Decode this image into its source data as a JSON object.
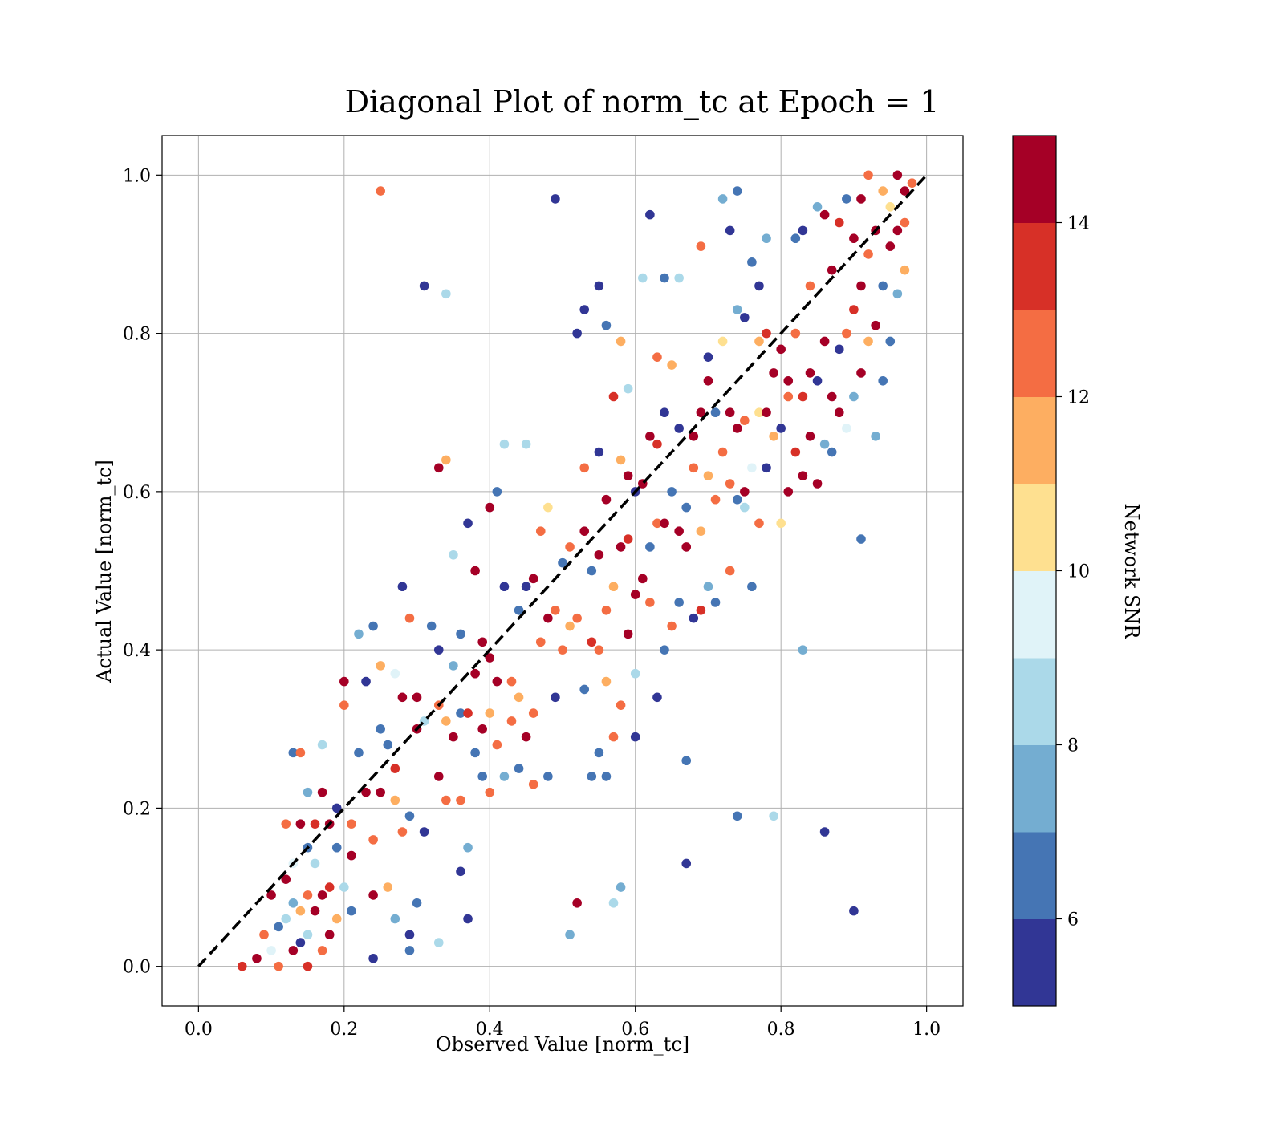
{
  "chart_data": {
    "type": "scatter",
    "title": "Diagonal Plot of norm_tc at Epoch = 1",
    "xlabel": "Observed Value [norm_tc]",
    "ylabel": "Actual Value [norm_tc]",
    "xlim": [
      -0.05,
      1.05
    ],
    "ylim": [
      -0.05,
      1.05
    ],
    "xticks": [
      "0.0",
      "0.2",
      "0.4",
      "0.6",
      "0.8",
      "1.0"
    ],
    "yticks": [
      "0.0",
      "0.2",
      "0.4",
      "0.6",
      "0.8",
      "1.0"
    ],
    "grid": true,
    "reference_line": {
      "style": "dashed",
      "color": "#000000",
      "from": [
        0,
        0
      ],
      "to": [
        1,
        1
      ]
    },
    "colorbar": {
      "label": "Network SNR",
      "range": [
        5,
        15
      ],
      "ticks": [
        "6",
        "8",
        "10",
        "12",
        "14"
      ],
      "colors": [
        "#313695",
        "#4575b4",
        "#74add1",
        "#abd9e9",
        "#e0f3f8",
        "#fee090",
        "#fdae61",
        "#f46d43",
        "#d73027",
        "#a50026"
      ],
      "bands": 10
    },
    "points": [
      [
        0.06,
        0.0,
        13
      ],
      [
        0.08,
        0.01,
        14
      ],
      [
        0.09,
        0.04,
        12
      ],
      [
        0.1,
        0.02,
        9
      ],
      [
        0.1,
        0.09,
        14
      ],
      [
        0.11,
        0.05,
        6
      ],
      [
        0.11,
        0.0,
        12
      ],
      [
        0.12,
        0.06,
        8
      ],
      [
        0.12,
        0.11,
        14
      ],
      [
        0.12,
        0.18,
        12
      ],
      [
        0.13,
        0.02,
        14
      ],
      [
        0.13,
        0.08,
        7
      ],
      [
        0.13,
        0.13,
        9
      ],
      [
        0.13,
        0.27,
        6
      ],
      [
        0.14,
        0.03,
        5
      ],
      [
        0.14,
        0.07,
        11
      ],
      [
        0.14,
        0.18,
        14
      ],
      [
        0.14,
        0.27,
        12
      ],
      [
        0.15,
        0.0,
        13
      ],
      [
        0.15,
        0.04,
        8
      ],
      [
        0.15,
        0.09,
        12
      ],
      [
        0.15,
        0.15,
        6
      ],
      [
        0.15,
        0.22,
        7
      ],
      [
        0.16,
        0.07,
        14
      ],
      [
        0.16,
        0.13,
        8
      ],
      [
        0.16,
        0.18,
        13
      ],
      [
        0.17,
        0.02,
        12
      ],
      [
        0.17,
        0.09,
        14
      ],
      [
        0.17,
        0.22,
        14
      ],
      [
        0.17,
        0.28,
        8
      ],
      [
        0.18,
        0.04,
        14
      ],
      [
        0.18,
        0.1,
        13
      ],
      [
        0.18,
        0.18,
        14
      ],
      [
        0.19,
        0.06,
        11
      ],
      [
        0.19,
        0.15,
        6
      ],
      [
        0.19,
        0.2,
        5
      ],
      [
        0.2,
        0.1,
        8
      ],
      [
        0.2,
        0.33,
        12
      ],
      [
        0.2,
        0.36,
        14
      ],
      [
        0.21,
        0.07,
        6
      ],
      [
        0.21,
        0.14,
        14
      ],
      [
        0.21,
        0.18,
        12
      ],
      [
        0.22,
        0.27,
        6
      ],
      [
        0.22,
        0.42,
        7
      ],
      [
        0.23,
        0.22,
        14
      ],
      [
        0.23,
        0.36,
        5
      ],
      [
        0.24,
        0.01,
        5
      ],
      [
        0.24,
        0.09,
        14
      ],
      [
        0.24,
        0.16,
        12
      ],
      [
        0.24,
        0.43,
        6
      ],
      [
        0.25,
        0.22,
        14
      ],
      [
        0.25,
        0.3,
        6
      ],
      [
        0.25,
        0.38,
        11
      ],
      [
        0.25,
        0.98,
        12
      ],
      [
        0.26,
        0.1,
        11
      ],
      [
        0.26,
        0.28,
        6
      ],
      [
        0.27,
        0.06,
        7
      ],
      [
        0.27,
        0.21,
        11
      ],
      [
        0.27,
        0.25,
        13
      ],
      [
        0.27,
        0.37,
        9
      ],
      [
        0.28,
        0.17,
        12
      ],
      [
        0.28,
        0.34,
        14
      ],
      [
        0.28,
        0.48,
        5
      ],
      [
        0.29,
        0.02,
        6
      ],
      [
        0.29,
        0.04,
        5
      ],
      [
        0.29,
        0.19,
        6
      ],
      [
        0.29,
        0.44,
        12
      ],
      [
        0.3,
        0.08,
        6
      ],
      [
        0.3,
        0.3,
        14
      ],
      [
        0.3,
        0.34,
        14
      ],
      [
        0.31,
        0.17,
        5
      ],
      [
        0.31,
        0.31,
        8
      ],
      [
        0.31,
        0.86,
        5
      ],
      [
        0.32,
        0.43,
        6
      ],
      [
        0.33,
        0.03,
        8
      ],
      [
        0.33,
        0.24,
        14
      ],
      [
        0.33,
        0.33,
        12
      ],
      [
        0.33,
        0.4,
        5
      ],
      [
        0.33,
        0.63,
        14
      ],
      [
        0.34,
        0.21,
        12
      ],
      [
        0.34,
        0.31,
        11
      ],
      [
        0.34,
        0.64,
        11
      ],
      [
        0.34,
        0.85,
        8
      ],
      [
        0.35,
        0.29,
        14
      ],
      [
        0.35,
        0.38,
        7
      ],
      [
        0.35,
        0.52,
        8
      ],
      [
        0.36,
        0.12,
        5
      ],
      [
        0.36,
        0.21,
        12
      ],
      [
        0.36,
        0.32,
        6
      ],
      [
        0.36,
        0.42,
        6
      ],
      [
        0.37,
        0.06,
        5
      ],
      [
        0.37,
        0.15,
        7
      ],
      [
        0.37,
        0.32,
        13
      ],
      [
        0.37,
        0.56,
        5
      ],
      [
        0.38,
        0.27,
        6
      ],
      [
        0.38,
        0.37,
        14
      ],
      [
        0.38,
        0.5,
        14
      ],
      [
        0.39,
        0.24,
        6
      ],
      [
        0.39,
        0.3,
        14
      ],
      [
        0.39,
        0.41,
        14
      ],
      [
        0.4,
        0.22,
        12
      ],
      [
        0.4,
        0.32,
        11
      ],
      [
        0.4,
        0.39,
        14
      ],
      [
        0.4,
        0.58,
        14
      ],
      [
        0.41,
        0.28,
        12
      ],
      [
        0.41,
        0.36,
        14
      ],
      [
        0.41,
        0.6,
        6
      ],
      [
        0.42,
        0.24,
        7
      ],
      [
        0.42,
        0.48,
        5
      ],
      [
        0.42,
        0.66,
        8
      ],
      [
        0.43,
        0.31,
        12
      ],
      [
        0.43,
        0.36,
        12
      ],
      [
        0.44,
        0.25,
        6
      ],
      [
        0.44,
        0.34,
        11
      ],
      [
        0.44,
        0.45,
        6
      ],
      [
        0.45,
        0.29,
        14
      ],
      [
        0.45,
        0.48,
        5
      ],
      [
        0.45,
        0.66,
        8
      ],
      [
        0.46,
        0.23,
        12
      ],
      [
        0.46,
        0.32,
        12
      ],
      [
        0.46,
        0.49,
        14
      ],
      [
        0.47,
        0.41,
        12
      ],
      [
        0.47,
        0.55,
        12
      ],
      [
        0.48,
        0.24,
        6
      ],
      [
        0.48,
        0.44,
        14
      ],
      [
        0.48,
        0.58,
        10
      ],
      [
        0.49,
        0.34,
        5
      ],
      [
        0.49,
        0.45,
        12
      ],
      [
        0.49,
        0.97,
        5
      ],
      [
        0.5,
        0.4,
        12
      ],
      [
        0.5,
        0.51,
        6
      ],
      [
        0.51,
        0.04,
        7
      ],
      [
        0.51,
        0.43,
        11
      ],
      [
        0.51,
        0.53,
        12
      ],
      [
        0.52,
        0.08,
        14
      ],
      [
        0.52,
        0.44,
        12
      ],
      [
        0.52,
        0.8,
        5
      ],
      [
        0.53,
        0.35,
        6
      ],
      [
        0.53,
        0.55,
        14
      ],
      [
        0.53,
        0.63,
        12
      ],
      [
        0.53,
        0.83,
        5
      ],
      [
        0.54,
        0.24,
        6
      ],
      [
        0.54,
        0.41,
        13
      ],
      [
        0.54,
        0.5,
        6
      ],
      [
        0.55,
        0.27,
        6
      ],
      [
        0.55,
        0.4,
        12
      ],
      [
        0.55,
        0.52,
        14
      ],
      [
        0.55,
        0.65,
        5
      ],
      [
        0.55,
        0.86,
        5
      ],
      [
        0.56,
        0.24,
        6
      ],
      [
        0.56,
        0.36,
        11
      ],
      [
        0.56,
        0.45,
        12
      ],
      [
        0.56,
        0.59,
        14
      ],
      [
        0.56,
        0.81,
        6
      ],
      [
        0.57,
        0.08,
        8
      ],
      [
        0.57,
        0.29,
        12
      ],
      [
        0.57,
        0.48,
        11
      ],
      [
        0.57,
        0.72,
        13
      ],
      [
        0.58,
        0.1,
        7
      ],
      [
        0.58,
        0.33,
        12
      ],
      [
        0.58,
        0.53,
        14
      ],
      [
        0.58,
        0.64,
        11
      ],
      [
        0.58,
        0.79,
        11
      ],
      [
        0.59,
        0.42,
        14
      ],
      [
        0.59,
        0.54,
        13
      ],
      [
        0.59,
        0.62,
        14
      ],
      [
        0.59,
        0.73,
        8
      ],
      [
        0.6,
        0.29,
        5
      ],
      [
        0.6,
        0.37,
        8
      ],
      [
        0.6,
        0.47,
        14
      ],
      [
        0.6,
        0.6,
        5
      ],
      [
        0.61,
        0.49,
        14
      ],
      [
        0.61,
        0.61,
        14
      ],
      [
        0.61,
        0.87,
        8
      ],
      [
        0.62,
        0.46,
        12
      ],
      [
        0.62,
        0.53,
        6
      ],
      [
        0.62,
        0.67,
        14
      ],
      [
        0.62,
        0.95,
        5
      ],
      [
        0.63,
        0.34,
        5
      ],
      [
        0.63,
        0.56,
        12
      ],
      [
        0.63,
        0.66,
        13
      ],
      [
        0.63,
        0.77,
        12
      ],
      [
        0.64,
        0.4,
        6
      ],
      [
        0.64,
        0.56,
        14
      ],
      [
        0.64,
        0.7,
        5
      ],
      [
        0.64,
        0.87,
        6
      ],
      [
        0.65,
        0.43,
        12
      ],
      [
        0.65,
        0.6,
        6
      ],
      [
        0.65,
        0.76,
        11
      ],
      [
        0.66,
        0.46,
        6
      ],
      [
        0.66,
        0.55,
        14
      ],
      [
        0.66,
        0.68,
        5
      ],
      [
        0.66,
        0.87,
        8
      ],
      [
        0.67,
        0.13,
        5
      ],
      [
        0.67,
        0.26,
        6
      ],
      [
        0.67,
        0.53,
        14
      ],
      [
        0.67,
        0.58,
        6
      ],
      [
        0.68,
        0.44,
        5
      ],
      [
        0.68,
        0.63,
        12
      ],
      [
        0.68,
        0.67,
        14
      ],
      [
        0.69,
        0.45,
        13
      ],
      [
        0.69,
        0.55,
        11
      ],
      [
        0.69,
        0.7,
        14
      ],
      [
        0.69,
        0.91,
        12
      ],
      [
        0.7,
        0.48,
        7
      ],
      [
        0.7,
        0.62,
        11
      ],
      [
        0.7,
        0.74,
        14
      ],
      [
        0.7,
        0.77,
        5
      ],
      [
        0.71,
        0.46,
        6
      ],
      [
        0.71,
        0.59,
        12
      ],
      [
        0.71,
        0.7,
        6
      ],
      [
        0.72,
        0.65,
        12
      ],
      [
        0.72,
        0.79,
        10
      ],
      [
        0.72,
        0.97,
        7
      ],
      [
        0.73,
        0.5,
        12
      ],
      [
        0.73,
        0.61,
        12
      ],
      [
        0.73,
        0.7,
        14
      ],
      [
        0.73,
        0.93,
        5
      ],
      [
        0.74,
        0.19,
        6
      ],
      [
        0.74,
        0.59,
        6
      ],
      [
        0.74,
        0.68,
        14
      ],
      [
        0.74,
        0.83,
        7
      ],
      [
        0.74,
        0.98,
        6
      ],
      [
        0.75,
        0.58,
        8
      ],
      [
        0.75,
        0.6,
        14
      ],
      [
        0.75,
        0.69,
        12
      ],
      [
        0.75,
        0.82,
        5
      ],
      [
        0.76,
        0.48,
        6
      ],
      [
        0.76,
        0.63,
        9
      ],
      [
        0.76,
        0.89,
        6
      ],
      [
        0.77,
        0.56,
        12
      ],
      [
        0.77,
        0.7,
        10
      ],
      [
        0.77,
        0.79,
        11
      ],
      [
        0.77,
        0.86,
        5
      ],
      [
        0.78,
        0.63,
        5
      ],
      [
        0.78,
        0.7,
        14
      ],
      [
        0.78,
        0.8,
        13
      ],
      [
        0.78,
        0.92,
        7
      ],
      [
        0.79,
        0.19,
        8
      ],
      [
        0.79,
        0.67,
        11
      ],
      [
        0.79,
        0.75,
        14
      ],
      [
        0.8,
        0.56,
        10
      ],
      [
        0.8,
        0.68,
        5
      ],
      [
        0.8,
        0.78,
        14
      ],
      [
        0.81,
        0.6,
        14
      ],
      [
        0.81,
        0.72,
        12
      ],
      [
        0.81,
        0.74,
        14
      ],
      [
        0.82,
        0.65,
        13
      ],
      [
        0.82,
        0.8,
        12
      ],
      [
        0.82,
        0.92,
        6
      ],
      [
        0.83,
        0.4,
        7
      ],
      [
        0.83,
        0.62,
        14
      ],
      [
        0.83,
        0.72,
        13
      ],
      [
        0.83,
        0.93,
        5
      ],
      [
        0.84,
        0.67,
        14
      ],
      [
        0.84,
        0.75,
        14
      ],
      [
        0.84,
        0.86,
        12
      ],
      [
        0.85,
        0.61,
        14
      ],
      [
        0.85,
        0.74,
        5
      ],
      [
        0.85,
        0.96,
        7
      ],
      [
        0.86,
        0.17,
        5
      ],
      [
        0.86,
        0.66,
        7
      ],
      [
        0.86,
        0.79,
        14
      ],
      [
        0.86,
        0.95,
        14
      ],
      [
        0.87,
        0.65,
        6
      ],
      [
        0.87,
        0.72,
        14
      ],
      [
        0.87,
        0.88,
        14
      ],
      [
        0.88,
        0.7,
        14
      ],
      [
        0.88,
        0.78,
        5
      ],
      [
        0.88,
        0.94,
        13
      ],
      [
        0.89,
        0.68,
        9
      ],
      [
        0.89,
        0.8,
        12
      ],
      [
        0.89,
        0.97,
        6
      ],
      [
        0.9,
        0.07,
        5
      ],
      [
        0.9,
        0.72,
        7
      ],
      [
        0.9,
        0.83,
        13
      ],
      [
        0.9,
        0.92,
        14
      ],
      [
        0.91,
        0.54,
        6
      ],
      [
        0.91,
        0.75,
        14
      ],
      [
        0.91,
        0.86,
        14
      ],
      [
        0.91,
        0.97,
        14
      ],
      [
        0.92,
        0.79,
        11
      ],
      [
        0.92,
        0.9,
        12
      ],
      [
        0.92,
        1.0,
        12
      ],
      [
        0.93,
        0.67,
        7
      ],
      [
        0.93,
        0.81,
        14
      ],
      [
        0.93,
        0.93,
        14
      ],
      [
        0.94,
        0.74,
        6
      ],
      [
        0.94,
        0.86,
        6
      ],
      [
        0.94,
        0.98,
        11
      ],
      [
        0.95,
        0.79,
        6
      ],
      [
        0.95,
        0.91,
        14
      ],
      [
        0.95,
        0.96,
        10
      ],
      [
        0.96,
        0.85,
        7
      ],
      [
        0.96,
        0.93,
        14
      ],
      [
        0.96,
        1.0,
        14
      ],
      [
        0.97,
        0.88,
        11
      ],
      [
        0.97,
        0.94,
        12
      ],
      [
        0.97,
        0.98,
        14
      ],
      [
        0.98,
        0.99,
        12
      ]
    ]
  }
}
